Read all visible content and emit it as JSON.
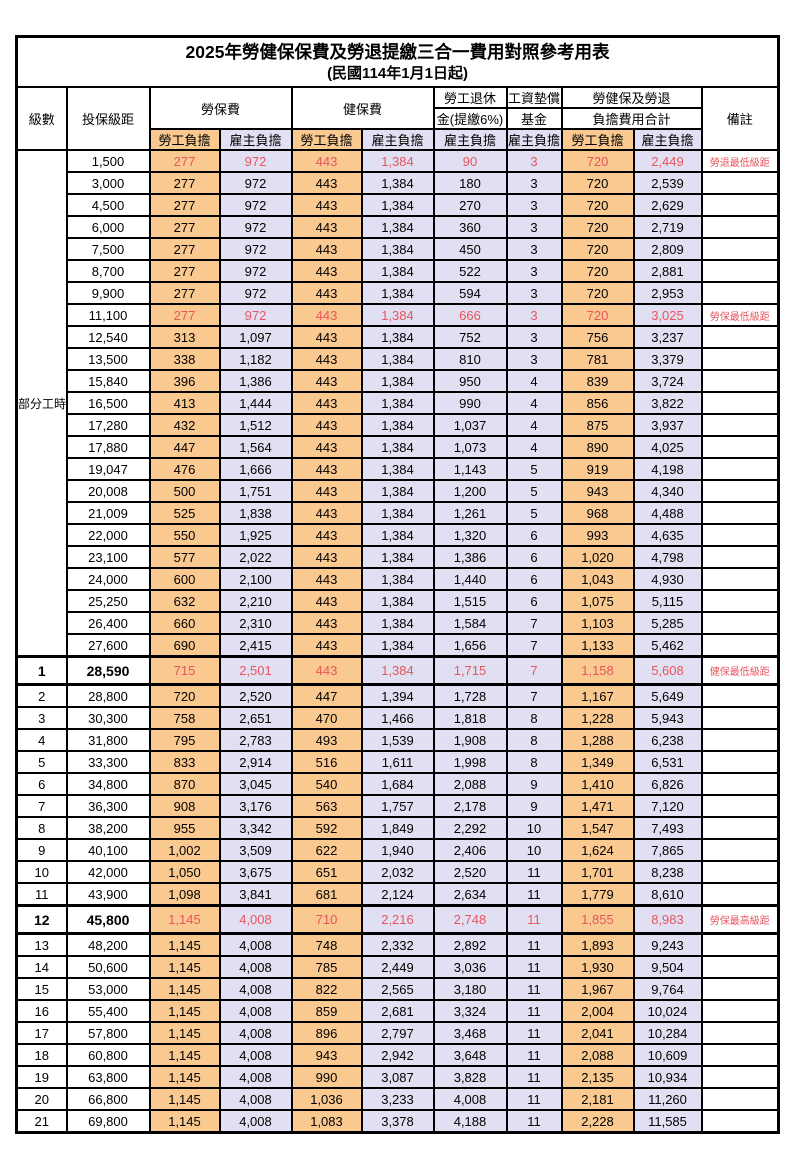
{
  "title": "2025年勞健保保費及勞退提繳三合一費用對照參考用表",
  "subtitle": "(民國114年1月1日起)",
  "colors": {
    "employee_bg": "#f9c990",
    "employer_bg": "#e0e0f2",
    "highlight_text": "#e8555f"
  },
  "header": {
    "level": "級數",
    "bracket": "投保級距",
    "labor_insurance": "勞保費",
    "health_insurance": "健保費",
    "pension_line1": "勞工退休",
    "pension_line2": "金(提繳6%)",
    "wage_fund_line1": "工資墊償",
    "wage_fund_line2": "基金",
    "total_line1": "勞健保及勞退",
    "total_line2": "負擔費用合計",
    "remarks": "備註",
    "employee_burden": "勞工負擔",
    "employer_burden": "雇主負擔"
  },
  "table": {
    "part_time_label": "部分工時",
    "part_time_rowspan": 23,
    "value_columns": [
      "labor_employee",
      "labor_employer",
      "health_employee",
      "health_employer",
      "pension_employer",
      "wage_fund_employer",
      "total_employee",
      "total_employer"
    ],
    "rows": [
      {
        "lv": "",
        "br": "1,500",
        "v": [
          "277",
          "972",
          "443",
          "1,384",
          "90",
          "3",
          "720",
          "2,449"
        ],
        "note": "勞退最低級距",
        "red": true
      },
      {
        "lv": "",
        "br": "3,000",
        "v": [
          "277",
          "972",
          "443",
          "1,384",
          "180",
          "3",
          "720",
          "2,539"
        ],
        "note": ""
      },
      {
        "lv": "",
        "br": "4,500",
        "v": [
          "277",
          "972",
          "443",
          "1,384",
          "270",
          "3",
          "720",
          "2,629"
        ],
        "note": ""
      },
      {
        "lv": "",
        "br": "6,000",
        "v": [
          "277",
          "972",
          "443",
          "1,384",
          "360",
          "3",
          "720",
          "2,719"
        ],
        "note": ""
      },
      {
        "lv": "",
        "br": "7,500",
        "v": [
          "277",
          "972",
          "443",
          "1,384",
          "450",
          "3",
          "720",
          "2,809"
        ],
        "note": ""
      },
      {
        "lv": "",
        "br": "8,700",
        "v": [
          "277",
          "972",
          "443",
          "1,384",
          "522",
          "3",
          "720",
          "2,881"
        ],
        "note": ""
      },
      {
        "lv": "",
        "br": "9,900",
        "v": [
          "277",
          "972",
          "443",
          "1,384",
          "594",
          "3",
          "720",
          "2,953"
        ],
        "note": ""
      },
      {
        "lv": "",
        "br": "11,100",
        "v": [
          "277",
          "972",
          "443",
          "1,384",
          "666",
          "3",
          "720",
          "3,025"
        ],
        "note": "勞保最低級距",
        "red": true
      },
      {
        "lv": "",
        "br": "12,540",
        "v": [
          "313",
          "1,097",
          "443",
          "1,384",
          "752",
          "3",
          "756",
          "3,237"
        ],
        "note": ""
      },
      {
        "lv": "",
        "br": "13,500",
        "v": [
          "338",
          "1,182",
          "443",
          "1,384",
          "810",
          "3",
          "781",
          "3,379"
        ],
        "note": ""
      },
      {
        "lv": "",
        "br": "15,840",
        "v": [
          "396",
          "1,386",
          "443",
          "1,384",
          "950",
          "4",
          "839",
          "3,724"
        ],
        "note": ""
      },
      {
        "lv": "",
        "br": "16,500",
        "v": [
          "413",
          "1,444",
          "443",
          "1,384",
          "990",
          "4",
          "856",
          "3,822"
        ],
        "note": ""
      },
      {
        "lv": "",
        "br": "17,280",
        "v": [
          "432",
          "1,512",
          "443",
          "1,384",
          "1,037",
          "4",
          "875",
          "3,937"
        ],
        "note": ""
      },
      {
        "lv": "",
        "br": "17,880",
        "v": [
          "447",
          "1,564",
          "443",
          "1,384",
          "1,073",
          "4",
          "890",
          "4,025"
        ],
        "note": ""
      },
      {
        "lv": "",
        "br": "19,047",
        "v": [
          "476",
          "1,666",
          "443",
          "1,384",
          "1,143",
          "5",
          "919",
          "4,198"
        ],
        "note": ""
      },
      {
        "lv": "",
        "br": "20,008",
        "v": [
          "500",
          "1,751",
          "443",
          "1,384",
          "1,200",
          "5",
          "943",
          "4,340"
        ],
        "note": ""
      },
      {
        "lv": "",
        "br": "21,009",
        "v": [
          "525",
          "1,838",
          "443",
          "1,384",
          "1,261",
          "5",
          "968",
          "4,488"
        ],
        "note": ""
      },
      {
        "lv": "",
        "br": "22,000",
        "v": [
          "550",
          "1,925",
          "443",
          "1,384",
          "1,320",
          "6",
          "993",
          "4,635"
        ],
        "note": ""
      },
      {
        "lv": "",
        "br": "23,100",
        "v": [
          "577",
          "2,022",
          "443",
          "1,384",
          "1,386",
          "6",
          "1,020",
          "4,798"
        ],
        "note": ""
      },
      {
        "lv": "",
        "br": "24,000",
        "v": [
          "600",
          "2,100",
          "443",
          "1,384",
          "1,440",
          "6",
          "1,043",
          "4,930"
        ],
        "note": ""
      },
      {
        "lv": "",
        "br": "25,250",
        "v": [
          "632",
          "2,210",
          "443",
          "1,384",
          "1,515",
          "6",
          "1,075",
          "5,115"
        ],
        "note": ""
      },
      {
        "lv": "",
        "br": "26,400",
        "v": [
          "660",
          "2,310",
          "443",
          "1,384",
          "1,584",
          "7",
          "1,103",
          "5,285"
        ],
        "note": ""
      },
      {
        "lv": "",
        "br": "27,600",
        "v": [
          "690",
          "2,415",
          "443",
          "1,384",
          "1,656",
          "7",
          "1,133",
          "5,462"
        ],
        "note": ""
      },
      {
        "lv": "1",
        "br": "28,590",
        "v": [
          "715",
          "2,501",
          "443",
          "1,384",
          "1,715",
          "7",
          "1,158",
          "5,608"
        ],
        "note": "健保最低級距",
        "red": true,
        "hl": true
      },
      {
        "lv": "2",
        "br": "28,800",
        "v": [
          "720",
          "2,520",
          "447",
          "1,394",
          "1,728",
          "7",
          "1,167",
          "5,649"
        ],
        "note": ""
      },
      {
        "lv": "3",
        "br": "30,300",
        "v": [
          "758",
          "2,651",
          "470",
          "1,466",
          "1,818",
          "8",
          "1,228",
          "5,943"
        ],
        "note": ""
      },
      {
        "lv": "4",
        "br": "31,800",
        "v": [
          "795",
          "2,783",
          "493",
          "1,539",
          "1,908",
          "8",
          "1,288",
          "6,238"
        ],
        "note": ""
      },
      {
        "lv": "5",
        "br": "33,300",
        "v": [
          "833",
          "2,914",
          "516",
          "1,611",
          "1,998",
          "8",
          "1,349",
          "6,531"
        ],
        "note": ""
      },
      {
        "lv": "6",
        "br": "34,800",
        "v": [
          "870",
          "3,045",
          "540",
          "1,684",
          "2,088",
          "9",
          "1,410",
          "6,826"
        ],
        "note": ""
      },
      {
        "lv": "7",
        "br": "36,300",
        "v": [
          "908",
          "3,176",
          "563",
          "1,757",
          "2,178",
          "9",
          "1,471",
          "7,120"
        ],
        "note": ""
      },
      {
        "lv": "8",
        "br": "38,200",
        "v": [
          "955",
          "3,342",
          "592",
          "1,849",
          "2,292",
          "10",
          "1,547",
          "7,493"
        ],
        "note": ""
      },
      {
        "lv": "9",
        "br": "40,100",
        "v": [
          "1,002",
          "3,509",
          "622",
          "1,940",
          "2,406",
          "10",
          "1,624",
          "7,865"
        ],
        "note": ""
      },
      {
        "lv": "10",
        "br": "42,000",
        "v": [
          "1,050",
          "3,675",
          "651",
          "2,032",
          "2,520",
          "11",
          "1,701",
          "8,238"
        ],
        "note": ""
      },
      {
        "lv": "11",
        "br": "43,900",
        "v": [
          "1,098",
          "3,841",
          "681",
          "2,124",
          "2,634",
          "11",
          "1,779",
          "8,610"
        ],
        "note": ""
      },
      {
        "lv": "12",
        "br": "45,800",
        "v": [
          "1,145",
          "4,008",
          "710",
          "2,216",
          "2,748",
          "11",
          "1,855",
          "8,983"
        ],
        "note": "勞保最高級距",
        "red": true,
        "hl": true
      },
      {
        "lv": "13",
        "br": "48,200",
        "v": [
          "1,145",
          "4,008",
          "748",
          "2,332",
          "2,892",
          "11",
          "1,893",
          "9,243"
        ],
        "note": ""
      },
      {
        "lv": "14",
        "br": "50,600",
        "v": [
          "1,145",
          "4,008",
          "785",
          "2,449",
          "3,036",
          "11",
          "1,930",
          "9,504"
        ],
        "note": ""
      },
      {
        "lv": "15",
        "br": "53,000",
        "v": [
          "1,145",
          "4,008",
          "822",
          "2,565",
          "3,180",
          "11",
          "1,967",
          "9,764"
        ],
        "note": ""
      },
      {
        "lv": "16",
        "br": "55,400",
        "v": [
          "1,145",
          "4,008",
          "859",
          "2,681",
          "3,324",
          "11",
          "2,004",
          "10,024"
        ],
        "note": ""
      },
      {
        "lv": "17",
        "br": "57,800",
        "v": [
          "1,145",
          "4,008",
          "896",
          "2,797",
          "3,468",
          "11",
          "2,041",
          "10,284"
        ],
        "note": ""
      },
      {
        "lv": "18",
        "br": "60,800",
        "v": [
          "1,145",
          "4,008",
          "943",
          "2,942",
          "3,648",
          "11",
          "2,088",
          "10,609"
        ],
        "note": ""
      },
      {
        "lv": "19",
        "br": "63,800",
        "v": [
          "1,145",
          "4,008",
          "990",
          "3,087",
          "3,828",
          "11",
          "2,135",
          "10,934"
        ],
        "note": ""
      },
      {
        "lv": "20",
        "br": "66,800",
        "v": [
          "1,145",
          "4,008",
          "1,036",
          "3,233",
          "4,008",
          "11",
          "2,181",
          "11,260"
        ],
        "note": ""
      },
      {
        "lv": "21",
        "br": "69,800",
        "v": [
          "1,145",
          "4,008",
          "1,083",
          "3,378",
          "4,188",
          "11",
          "2,228",
          "11,585"
        ],
        "note": ""
      }
    ]
  }
}
